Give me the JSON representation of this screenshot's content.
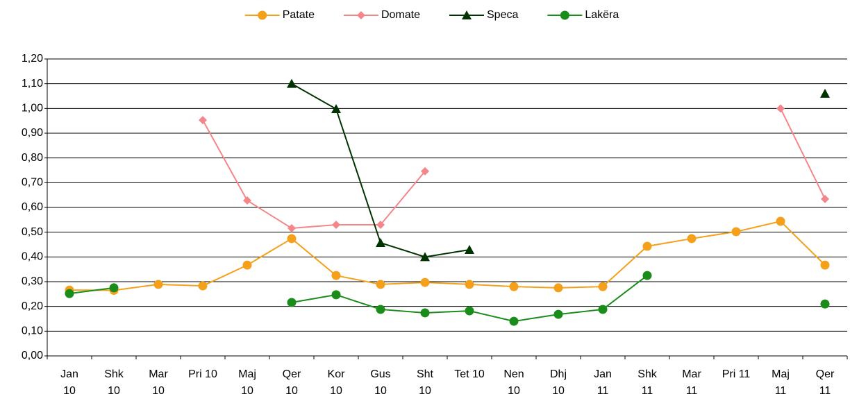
{
  "chart_data": {
    "type": "line",
    "categories": [
      "Jan 10",
      "Shk 10",
      "Mar 10",
      "Pri 10",
      "Maj 10",
      "Qer 10",
      "Kor 10",
      "Gus 10",
      "Sht 10",
      "Tet 10",
      "Nen 10",
      "Dhj 10",
      "Jan 11",
      "Shk 11",
      "Mar 11",
      "Pri 11",
      "Maj 11",
      "Qer 11"
    ],
    "series": [
      {
        "name": "Patate",
        "color": "#f5a01a",
        "marker": "circle",
        "values": [
          0.266,
          0.265,
          0.289,
          0.283,
          0.367,
          0.474,
          0.325,
          0.289,
          0.297,
          0.289,
          0.28,
          0.275,
          0.28,
          0.443,
          0.474,
          0.502,
          0.544,
          0.367
        ]
      },
      {
        "name": "Domate",
        "color": "#f4868a",
        "marker": "diamond",
        "values": [
          null,
          null,
          null,
          0.953,
          0.628,
          0.516,
          0.53,
          0.53,
          0.746,
          null,
          null,
          null,
          null,
          null,
          null,
          null,
          1.0,
          0.634
        ]
      },
      {
        "name": "Speca",
        "color": "#003300",
        "marker": "triangle",
        "values": [
          null,
          null,
          null,
          null,
          null,
          1.1,
          0.998,
          0.457,
          0.4,
          0.429,
          null,
          null,
          null,
          null,
          null,
          null,
          null,
          1.06
        ]
      },
      {
        "name": "Lakëra",
        "color": "#1a8c1a",
        "marker": "circle",
        "values": [
          0.252,
          0.275,
          null,
          null,
          null,
          0.216,
          0.247,
          0.188,
          0.174,
          0.182,
          0.14,
          0.168,
          0.188,
          0.325,
          null,
          null,
          null,
          0.21
        ]
      }
    ],
    "ylim": [
      0,
      1.2
    ],
    "yticks": [
      {
        "value": 0,
        "label": "0,00"
      },
      {
        "value": 0.1,
        "label": "0,10"
      },
      {
        "value": 0.2,
        "label": "0,20"
      },
      {
        "value": 0.3,
        "label": "0,30"
      },
      {
        "value": 0.4,
        "label": "0,40"
      },
      {
        "value": 0.5,
        "label": "0,50"
      },
      {
        "value": 0.6,
        "label": "0,60"
      },
      {
        "value": 0.7,
        "label": "0,70"
      },
      {
        "value": 0.8,
        "label": "0,80"
      },
      {
        "value": 0.9,
        "label": "0,90"
      },
      {
        "value": 1.0,
        "label": "1,00"
      },
      {
        "value": 1.1,
        "label": "1,10"
      },
      {
        "value": 1.2,
        "label": "1,20"
      }
    ],
    "grid": true,
    "legend": "top"
  }
}
